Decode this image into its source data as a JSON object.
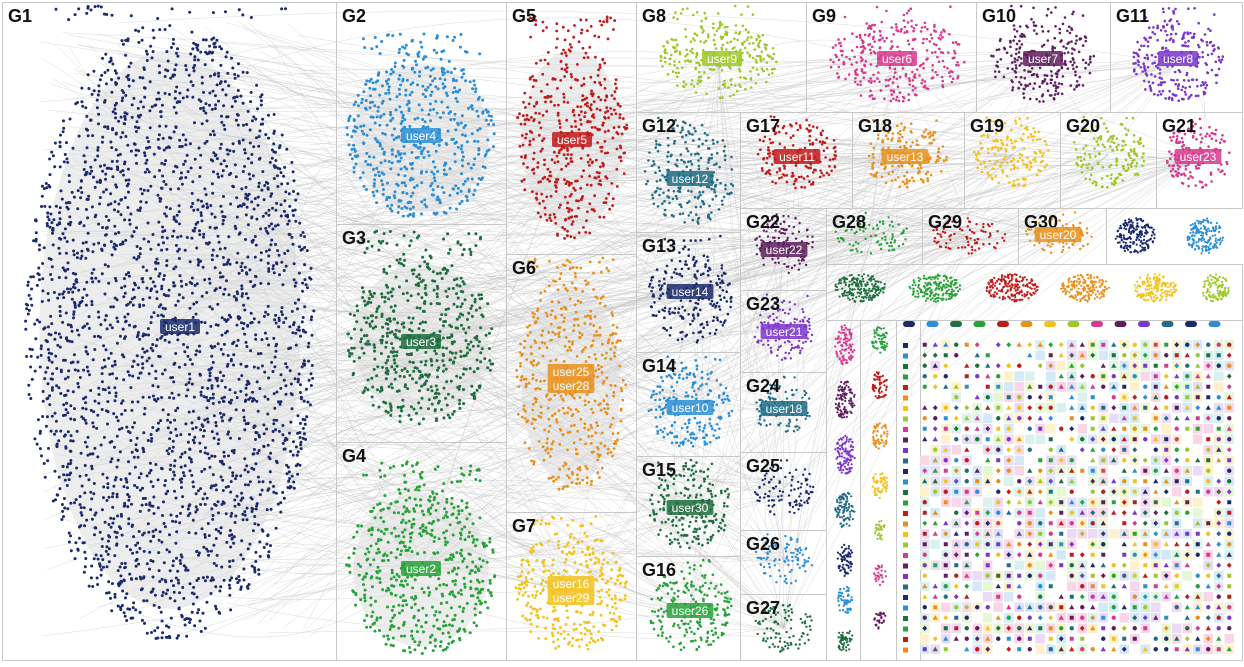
{
  "groups": [
    {
      "id": "G1",
      "label": "G1",
      "user": "user1",
      "color": "#1a2a6c"
    },
    {
      "id": "G2",
      "label": "G2",
      "user": "user4",
      "color": "#2c8fd6"
    },
    {
      "id": "G3",
      "label": "G3",
      "user": "user3",
      "color": "#1e6e3e"
    },
    {
      "id": "G4",
      "label": "G4",
      "user": "user2",
      "color": "#27a339"
    },
    {
      "id": "G5",
      "label": "G5",
      "user": "user5",
      "color": "#c01b1b"
    },
    {
      "id": "G6",
      "label": "G6",
      "user": "user25",
      "user2": "user28",
      "color": "#e8901c"
    },
    {
      "id": "G7",
      "label": "G7",
      "user": "user16",
      "user2": "user29",
      "color": "#f2c21d"
    },
    {
      "id": "G8",
      "label": "G8",
      "user": "user9",
      "color": "#9dc82a"
    },
    {
      "id": "G9",
      "label": "G9",
      "user": "user6",
      "color": "#d63a8e"
    },
    {
      "id": "G10",
      "label": "G10",
      "user": "user7",
      "color": "#5e1f5e"
    },
    {
      "id": "G11",
      "label": "G11",
      "user": "user8",
      "color": "#7a35c9"
    },
    {
      "id": "G12",
      "label": "G12",
      "user": "user12",
      "color": "#1f6d86"
    },
    {
      "id": "G13",
      "label": "G13",
      "user": "user14",
      "color": "#1a2a6c"
    },
    {
      "id": "G14",
      "label": "G14",
      "user": "user10",
      "color": "#2c8fd6"
    },
    {
      "id": "G15",
      "label": "G15",
      "user": "user30",
      "color": "#1e6e3e"
    },
    {
      "id": "G16",
      "label": "G16",
      "user": "user26",
      "color": "#27a339"
    },
    {
      "id": "G17",
      "label": "G17",
      "user": "user11",
      "color": "#c01b1b"
    },
    {
      "id": "G18",
      "label": "G18",
      "user": "user13",
      "color": "#e8901c"
    },
    {
      "id": "G19",
      "label": "G19",
      "user": "",
      "color": "#f2c21d"
    },
    {
      "id": "G20",
      "label": "G20",
      "user": "",
      "color": "#9dc82a"
    },
    {
      "id": "G21",
      "label": "G21",
      "user": "user23",
      "color": "#d63a8e"
    },
    {
      "id": "G22",
      "label": "G22",
      "user": "user22",
      "color": "#5e1f5e"
    },
    {
      "id": "G23",
      "label": "G23",
      "user": "user21",
      "color": "#7a35c9"
    },
    {
      "id": "G24",
      "label": "G24",
      "user": "user18",
      "color": "#1f6d86"
    },
    {
      "id": "G25",
      "label": "G25",
      "user": "",
      "color": "#1a2a6c"
    },
    {
      "id": "G26",
      "label": "G26",
      "user": "",
      "color": "#2c8fd6"
    },
    {
      "id": "G27",
      "label": "G27",
      "user": "",
      "color": "#1e6e3e"
    },
    {
      "id": "G28",
      "label": "G28",
      "user": "",
      "color": "#27a339"
    },
    {
      "id": "G29",
      "label": "G29",
      "user": "",
      "color": "#c01b1b"
    },
    {
      "id": "G30",
      "label": "G30",
      "user": "user20",
      "color": "#e8901c"
    }
  ],
  "palette": [
    "#1a2a6c",
    "#2c8fd6",
    "#1e6e3e",
    "#27a339",
    "#c01b1b",
    "#e8901c",
    "#f2c21d",
    "#9dc82a",
    "#d63a8e",
    "#5e1f5e",
    "#7a35c9",
    "#1f6d86"
  ],
  "edge_color": "#bdbdbd",
  "grid_tint": [
    "#f9d6e8",
    "#d6e9f9",
    "#e6f7d6",
    "#fff1cc",
    "#eadcf7",
    "#d9f2ef"
  ]
}
